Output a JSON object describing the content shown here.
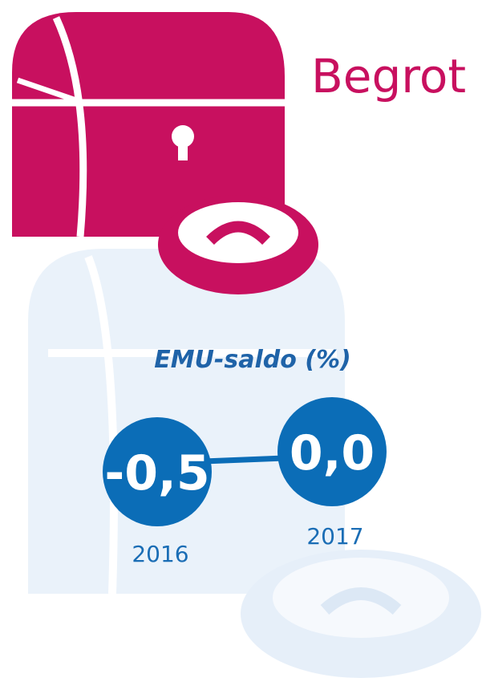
{
  "title": "Begrot",
  "indicator": {
    "label": "EMU-saldo (%)",
    "items": [
      {
        "value": "-0,5",
        "year": "2016"
      },
      {
        "value": "0,0",
        "year": "2017"
      }
    ]
  }
}
